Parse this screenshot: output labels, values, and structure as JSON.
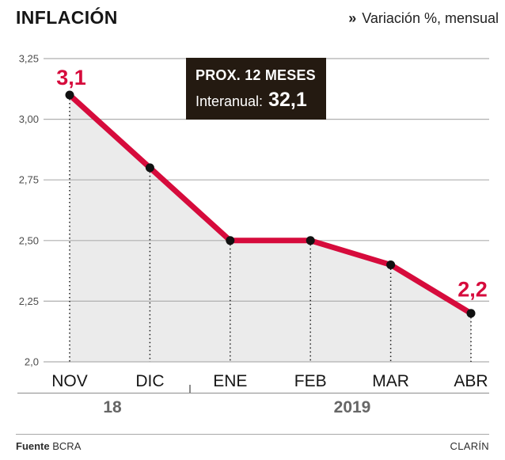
{
  "header": {
    "title": "INFLACIÓN",
    "subtitle_marker": "»",
    "subtitle": "Variación %, mensual"
  },
  "chart_data": {
    "type": "area",
    "title": "INFLACIÓN",
    "subtitle": "Variación %, mensual",
    "categories": [
      "NOV",
      "DIC",
      "ENE",
      "FEB",
      "MAR",
      "ABR"
    ],
    "values": [
      3.1,
      2.8,
      2.5,
      2.5,
      2.4,
      2.2
    ],
    "point_labels": [
      "3,1",
      "",
      "",
      "",
      "",
      "2,2"
    ],
    "ylim": [
      2.0,
      3.25
    ],
    "yticks": [
      {
        "value": 3.25,
        "label": "3,25"
      },
      {
        "value": 3.0,
        "label": "3,00"
      },
      {
        "value": 2.75,
        "label": "2,75"
      },
      {
        "value": 2.5,
        "label": "2,50"
      },
      {
        "value": 2.25,
        "label": "2,25"
      },
      {
        "value": 2.0,
        "label": "2,0"
      }
    ],
    "grid": "horizontal",
    "legend": "none",
    "colors": {
      "line": "#d60b3c",
      "area_fill": "#ebebeb",
      "point": "#111111",
      "grid_line": "#afafaf",
      "guide_line": "#1a1a1a",
      "value_label": "#d60b3c",
      "x_label": "#161616",
      "y_label": "#4d4d4d",
      "annotation_bg": "#241a11",
      "annotation_text": "#ffffff"
    },
    "annotation": {
      "line1": "PROX. 12 MESES",
      "line2_label": "Interanual:",
      "line2_value": "32,1"
    }
  },
  "x_axis": {
    "year_groups": [
      {
        "label": "18"
      },
      {
        "label": "2019"
      }
    ]
  },
  "footer": {
    "source_label": "Fuente",
    "source_value": "BCRA",
    "brand": "CLARÍN"
  }
}
